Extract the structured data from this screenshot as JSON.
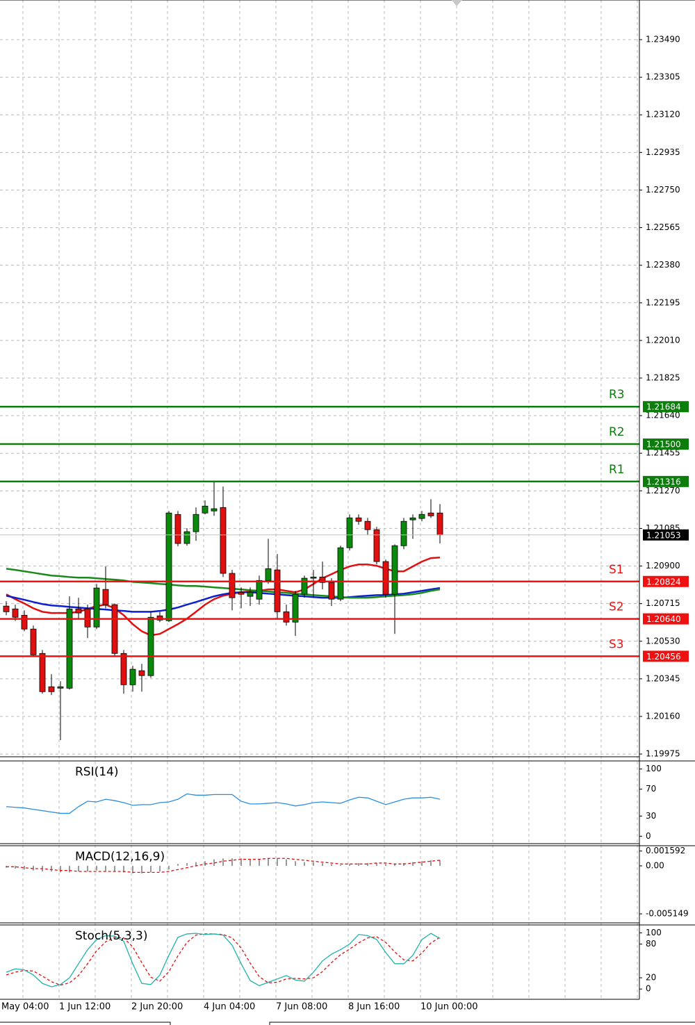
{
  "chart_data": [
    {
      "type": "candlestick",
      "open": [
        1.20703,
        1.20689,
        1.20658,
        1.2059,
        1.2047,
        1.20306,
        1.20299,
        1.20299,
        1.20689,
        1.20689,
        1.206,
        1.20785,
        1.2071,
        1.2047,
        1.20316,
        1.20385,
        1.20361,
        1.20655,
        1.20631,
        1.21154,
        1.21011,
        1.21069,
        1.21161,
        1.21171,
        1.21188,
        1.20864,
        1.20771,
        1.20751,
        1.20737,
        1.20829,
        1.20881,
        1.20675,
        1.20624,
        1.20761,
        1.2084,
        1.20846,
        1.20819,
        1.20737,
        1.2099,
        1.21137,
        1.2112,
        1.21079,
        1.20922,
        1.20761,
        1.21,
        1.21127,
        1.21134,
        1.21161,
        1.21161
      ],
      "high": [
        1.20727,
        1.2071,
        1.20682,
        1.20607,
        1.20487,
        1.20368,
        1.20333,
        1.20751,
        1.20744,
        1.2071,
        1.20812,
        1.20898,
        1.20716,
        1.20487,
        1.20409,
        1.20419,
        1.20675,
        1.20675,
        1.21171,
        1.21171,
        1.21086,
        1.21188,
        1.21223,
        1.21318,
        1.21291,
        1.20881,
        1.20795,
        1.20795,
        1.20853,
        1.21034,
        1.20959,
        1.2071,
        1.20778,
        1.20853,
        1.20881,
        1.20922,
        1.2084,
        1.21,
        1.21154,
        1.21154,
        1.21137,
        1.21093,
        1.20932,
        1.21007,
        1.21137,
        1.21154,
        1.21171,
        1.21229,
        1.21205
      ],
      "low": [
        1.20658,
        1.2063,
        1.20579,
        1.20453,
        1.20272,
        1.20265,
        1.20043,
        1.20292,
        1.20641,
        1.20546,
        1.2059,
        1.20692,
        1.20453,
        1.20272,
        1.20282,
        1.20282,
        1.2035,
        1.20624,
        1.20624,
        1.20997,
        1.21,
        1.21024,
        1.21154,
        1.21147,
        1.20846,
        1.20682,
        1.20692,
        1.20703,
        1.2071,
        1.20812,
        1.20641,
        1.20607,
        1.20556,
        1.20744,
        1.20744,
        1.20785,
        1.20703,
        1.20727,
        1.20976,
        1.21103,
        1.21052,
        1.20908,
        1.20744,
        1.20566,
        1.20983,
        1.21034,
        1.2112,
        1.21137,
        1.21011
      ],
      "close": [
        1.20675,
        1.20648,
        1.2059,
        1.20463,
        1.20282,
        1.20282,
        1.20306,
        1.20689,
        1.20669,
        1.206,
        1.20792,
        1.2071,
        1.2047,
        1.20316,
        1.20392,
        1.20361,
        1.20648,
        1.20634,
        1.21161,
        1.21011,
        1.21069,
        1.21154,
        1.21195,
        1.21182,
        1.20864,
        1.20744,
        1.20761,
        1.20771,
        1.20829,
        1.20887,
        1.20675,
        1.20624,
        1.20761,
        1.2084,
        1.20846,
        1.20819,
        1.20737,
        1.2099,
        1.21137,
        1.2112,
        1.21079,
        1.20922,
        1.20761,
        1.21,
        1.2112,
        1.21137,
        1.21154,
        1.21147,
        1.21053
      ],
      "up_color": "#0a8a0a",
      "down_color": "#e01010",
      "lines": [
        {
          "color": "#e01010",
          "values": [
            1.20761,
            1.20737,
            1.20716,
            1.20692,
            1.20675,
            1.20669,
            1.20669,
            1.20669,
            1.20675,
            1.20689,
            1.20703,
            1.2071,
            1.20692,
            1.20658,
            1.20614,
            1.20579,
            1.20559,
            1.20566,
            1.2059,
            1.20614,
            1.20641,
            1.20675,
            1.2071,
            1.20737,
            1.20754,
            1.20764,
            1.20771,
            1.20775,
            1.20778,
            1.20785,
            1.20785,
            1.20778,
            1.20771,
            1.20785,
            1.20812,
            1.2084,
            1.2086,
            1.20881,
            1.20898,
            1.20908,
            1.20908,
            1.20901,
            1.20887,
            1.20874,
            1.20874,
            1.20898,
            1.20922,
            1.20939,
            1.20942
          ]
        },
        {
          "color": "#0b1fd0",
          "values": [
            1.20754,
            1.20744,
            1.20734,
            1.20723,
            1.20713,
            1.20706,
            1.20703,
            1.20699,
            1.20696,
            1.20692,
            1.20689,
            1.20686,
            1.20682,
            1.20679,
            1.20675,
            1.20675,
            1.20675,
            1.20679,
            1.20686,
            1.20696,
            1.2071,
            1.20723,
            1.20737,
            1.20751,
            1.20761,
            1.20768,
            1.20771,
            1.20771,
            1.20768,
            1.20764,
            1.20761,
            1.20757,
            1.20754,
            1.20751,
            1.20747,
            1.20744,
            1.20744,
            1.20744,
            1.20747,
            1.20751,
            1.20754,
            1.20757,
            1.20757,
            1.20761,
            1.20764,
            1.20771,
            1.20778,
            1.20785,
            1.20792
          ]
        },
        {
          "color": "#1a8a1a",
          "values": [
            1.20887,
            1.20881,
            1.20874,
            1.20867,
            1.2086,
            1.20853,
            1.2085,
            1.20846,
            1.20843,
            1.20843,
            1.2084,
            1.20836,
            1.20833,
            1.20829,
            1.20822,
            1.20819,
            1.20816,
            1.20812,
            1.20809,
            1.20805,
            1.20802,
            1.20802,
            1.20799,
            1.20795,
            1.20792,
            1.20788,
            1.20785,
            1.20781,
            1.20778,
            1.20775,
            1.20771,
            1.20768,
            1.20764,
            1.20761,
            1.20757,
            1.20754,
            1.20751,
            1.20747,
            1.20744,
            1.20744,
            1.20744,
            1.20747,
            1.20751,
            1.20754,
            1.20757,
            1.20761,
            1.20768,
            1.20778,
            1.20785
          ]
        }
      ],
      "levels": {
        "names": [
          "R3",
          "R2",
          "R1",
          "S1",
          "S2",
          "S3"
        ],
        "values": [
          1.21684,
          1.215,
          1.21316,
          1.20824,
          1.2064,
          1.20456
        ],
        "value_labels": [
          "1.21684",
          "1.21500",
          "1.21316",
          "1.20824",
          "1.20640",
          "1.20456"
        ],
        "colors": [
          "#0a7d0a",
          "#0a7d0a",
          "#0a7d0a",
          "#f01010",
          "#f01010",
          "#f01010"
        ]
      },
      "last_price": 1.21053,
      "ylim": [
        1.19965,
        1.23685
      ],
      "yticks": [
        {
          "value": 1.2349,
          "label": "1.23490"
        },
        1.23305,
        {
          "value": 1.2312,
          "label": "1.23120"
        },
        1.22935,
        {
          "value": 1.2275,
          "label": "1.22750"
        },
        1.22565,
        {
          "value": 1.2238,
          "label": "1.22380"
        },
        1.22195,
        {
          "value": 1.2201,
          "label": "1.22010"
        },
        1.21825,
        {
          "value": 1.2164,
          "label": "1.21640"
        },
        1.21455,
        {
          "value": 1.2127,
          "label": "1.21270"
        },
        1.21085,
        {
          "value": 1.209,
          "label": "1.20900"
        },
        1.20715,
        {
          "value": 1.2053,
          "label": "1.20530"
        },
        1.20345,
        {
          "value": 1.2016,
          "label": "1.20160"
        },
        1.19975
      ],
      "grid": true,
      "x_labels": [
        "May 04:00",
        "1 Jun 12:00",
        "2 Jun 20:00",
        "4 Jun 04:00",
        "7 Jun 08:00",
        "8 Jun 16:00",
        "10 Jun 00:00"
      ]
    },
    {
      "type": "line",
      "title": "RSI(14)",
      "color": "#2a8ee0",
      "values": [
        44,
        43,
        42,
        40,
        38,
        36,
        34,
        34,
        44,
        52,
        51,
        55,
        53,
        50,
        46,
        47,
        47,
        50,
        51,
        55,
        63,
        61,
        61,
        62,
        62,
        62,
        52,
        48,
        48,
        49,
        50,
        48,
        45,
        47,
        50,
        51,
        50,
        49,
        54,
        58,
        57,
        52,
        47,
        51,
        55,
        57,
        57,
        58,
        55
      ],
      "ylim": [
        -10,
        112
      ],
      "yticks": [
        100,
        70,
        30,
        0
      ]
    },
    {
      "type": "bar",
      "title": "MACD(12,16,9)",
      "color": "#9a9a9a",
      "values": [
        -0.0002,
        -0.0003,
        -0.0004,
        -0.0005,
        -0.0006,
        -0.0006,
        -0.0007,
        -0.0007,
        -0.0006,
        -0.0006,
        -0.0005,
        -0.0006,
        -0.0006,
        -0.0007,
        -0.0008,
        -0.0008,
        -0.0007,
        -0.0006,
        -0.0004,
        0.0002,
        0.0003,
        0.0004,
        0.0005,
        0.0007,
        0.0008,
        0.0008,
        0.0008,
        0.0007,
        0.0007,
        0.0008,
        0.0008,
        0.0007,
        0.0005,
        0.0004,
        0.0004,
        0.0003,
        0.0002,
        0.0001,
        0.0002,
        0.0003,
        0.0003,
        0.0003,
        0.0002,
        0.0002,
        0.0003,
        0.0004,
        0.0005,
        0.0006,
        0.0006
      ],
      "signal": {
        "color": "#e01010",
        "values": [
          -0.0001,
          -0.0001,
          -0.0002,
          -0.0003,
          -0.0003,
          -0.0004,
          -0.0005,
          -0.0005,
          -0.0006,
          -0.0006,
          -0.0006,
          -0.0006,
          -0.0006,
          -0.0006,
          -0.0007,
          -0.0007,
          -0.0007,
          -0.0007,
          -0.0006,
          -0.0004,
          -0.0002,
          0,
          0.0002,
          0.0003,
          0.0005,
          0.0006,
          0.0007,
          0.0007,
          0.0007,
          0.0008,
          0.0008,
          0.0008,
          0.0007,
          0.0006,
          0.0005,
          0.0004,
          0.0003,
          0.0002,
          0.0002,
          0.0002,
          0.0002,
          0.0003,
          0.0003,
          0.0002,
          0.0002,
          0.0003,
          0.0004,
          0.0005,
          0.0006
        ]
      },
      "ylim": [
        -0.00604,
        0.00216
      ],
      "yticks": [
        0.001592,
        {
          "value": 0,
          "label": "0.00"
        },
        -0.005149
      ]
    },
    {
      "type": "line",
      "title": "Stoch(5,3,3)",
      "color": "#20b2aa",
      "values": [
        30,
        36,
        34,
        25,
        10,
        4,
        8,
        20,
        45,
        70,
        88,
        95,
        94,
        85,
        45,
        10,
        8,
        25,
        60,
        92,
        98,
        99,
        97,
        98,
        96,
        78,
        45,
        15,
        6,
        12,
        18,
        24,
        16,
        14,
        30,
        50,
        62,
        70,
        80,
        97,
        95,
        88,
        65,
        45,
        45,
        60,
        88,
        99,
        90
      ],
      "signal": {
        "color": "#e01010",
        "values": [
          25,
          30,
          33,
          32,
          23,
          13,
          7,
          11,
          24,
          45,
          68,
          84,
          92,
          91,
          75,
          47,
          21,
          14,
          31,
          59,
          83,
          96,
          98,
          98,
          97,
          91,
          73,
          46,
          22,
          11,
          12,
          18,
          19,
          18,
          20,
          31,
          47,
          61,
          71,
          82,
          91,
          93,
          83,
          66,
          52,
          50,
          64,
          82,
          92
        ]
      },
      "ylim": [
        -17,
        114
      ],
      "yticks": [
        100,
        80,
        20,
        0
      ]
    }
  ]
}
